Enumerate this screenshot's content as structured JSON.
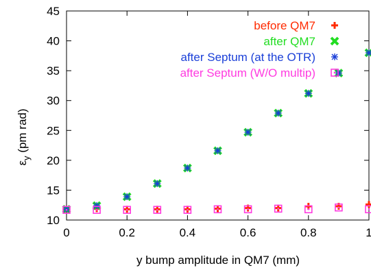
{
  "chart_data": {
    "type": "scatter",
    "xlabel": "y bump amplitude in QM7 (mm)",
    "ylabel": "ε_y (pm rad)",
    "xlim": [
      0,
      1
    ],
    "ylim": [
      10,
      45
    ],
    "xticks": [
      0,
      0.2,
      0.4,
      0.6,
      0.8,
      1
    ],
    "yticks": [
      10,
      15,
      20,
      25,
      30,
      35,
      40,
      45
    ],
    "xtick_labels": [
      "0",
      "0.2",
      "0.4",
      "0.6",
      "0.8",
      "1"
    ],
    "ytick_labels": [
      "10",
      "15",
      "20",
      "25",
      "30",
      "35",
      "40",
      "45"
    ],
    "grid": false,
    "legend_position": "top-right",
    "series": [
      {
        "name": "before QM7",
        "color": "#ff2a00",
        "marker": "plus",
        "x": [
          0,
          0.1,
          0.2,
          0.3,
          0.4,
          0.5,
          0.6,
          0.7,
          0.8,
          0.9,
          1.0
        ],
        "y": [
          11.8,
          11.9,
          11.8,
          11.8,
          11.8,
          11.9,
          12.0,
          12.0,
          12.3,
          12.3,
          12.6
        ]
      },
      {
        "name": "after QM7",
        "color": "#22dd22",
        "marker": "x-bold",
        "x": [
          0,
          0.1,
          0.2,
          0.3,
          0.4,
          0.5,
          0.6,
          0.7,
          0.8,
          0.9,
          1.0
        ],
        "y": [
          11.8,
          12.4,
          13.9,
          16.1,
          18.7,
          21.6,
          24.7,
          27.9,
          31.2,
          34.6,
          38.0
        ]
      },
      {
        "name": "after Septum (at the OTR)",
        "color": "#1a3fd8",
        "marker": "asterisk",
        "x": [
          0,
          0.1,
          0.2,
          0.3,
          0.4,
          0.5,
          0.6,
          0.7,
          0.8,
          0.9,
          1.0
        ],
        "y": [
          11.8,
          12.4,
          13.9,
          16.1,
          18.7,
          21.6,
          24.7,
          27.9,
          31.2,
          34.6,
          38.0
        ]
      },
      {
        "name": "after Septum (W/O multip)",
        "color": "#ff3be0",
        "marker": "square-dot",
        "x": [
          0,
          0.1,
          0.2,
          0.3,
          0.4,
          0.5,
          0.6,
          0.7,
          0.8,
          0.9,
          1.0
        ],
        "y": [
          11.7,
          11.7,
          11.7,
          11.7,
          11.7,
          11.8,
          11.8,
          11.9,
          11.8,
          12.1,
          11.8
        ]
      }
    ]
  }
}
